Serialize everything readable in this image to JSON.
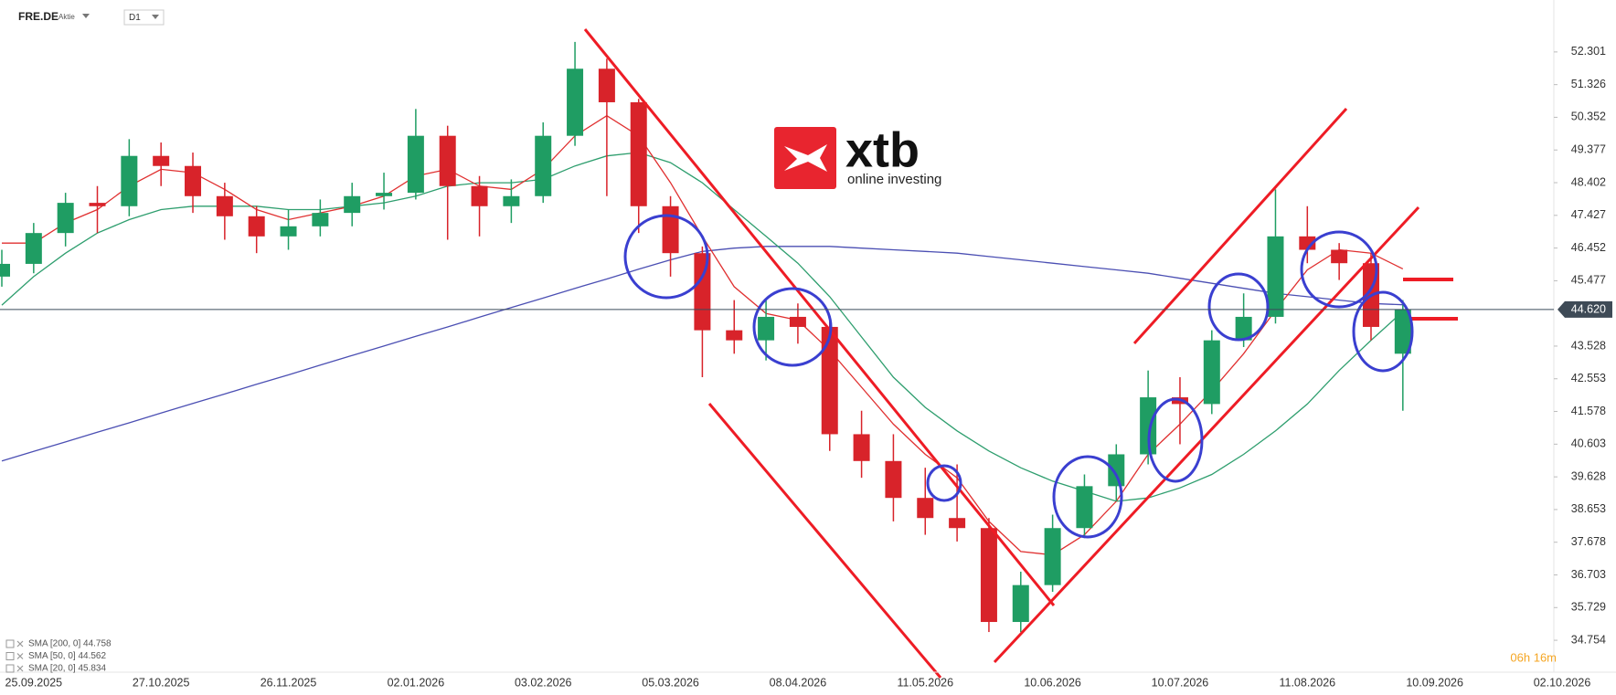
{
  "header": {
    "symbol": "FRE.DE",
    "instrument_type": "Aktie",
    "timeframe": "D1"
  },
  "logo": {
    "brand": "xtb",
    "tagline": "online investing"
  },
  "chart_data": {
    "type": "candlestick",
    "categories": [
      null,
      "25.09.2025",
      null,
      null,
      null,
      "27.10.2025",
      null,
      null,
      null,
      "26.11.2025",
      null,
      null,
      null,
      "02.01.2026",
      null,
      null,
      null,
      "03.02.2026",
      null,
      null,
      null,
      "05.03.2026",
      null,
      null,
      null,
      "08.04.2026",
      null,
      null,
      null,
      "11.05.2026",
      null,
      null,
      null,
      "10.06.2026",
      null,
      null,
      null,
      "10.07.2026",
      null,
      null,
      null,
      "11.08.2026",
      null,
      null,
      null,
      "10.09.2026",
      null,
      null,
      null,
      "02.10.2026"
    ],
    "open": [
      45.6,
      45.98,
      46.9,
      47.8,
      47.7,
      49.2,
      48.9,
      48.0,
      47.4,
      46.8,
      47.1,
      47.5,
      48.0,
      48.1,
      49.8,
      48.3,
      47.7,
      48.0,
      49.8,
      51.8,
      50.8,
      47.7,
      46.3,
      44.0,
      43.7,
      44.4,
      44.1,
      40.9,
      40.1,
      39.0,
      38.4,
      38.1,
      35.3,
      36.4,
      38.1,
      39.35,
      40.3,
      42.0,
      41.8,
      43.7,
      44.4,
      46.8,
      46.4,
      46.0,
      43.3,
      null,
      null,
      null,
      null,
      null
    ],
    "high": [
      46.4,
      47.2,
      48.1,
      48.3,
      49.7,
      49.6,
      49.3,
      48.4,
      47.7,
      47.6,
      47.9,
      48.4,
      48.7,
      50.6,
      50.1,
      48.6,
      48.5,
      50.2,
      52.6,
      52.1,
      50.9,
      48.0,
      46.5,
      44.9,
      44.9,
      44.8,
      44.4,
      41.6,
      40.9,
      39.9,
      40.0,
      38.4,
      36.8,
      38.5,
      39.7,
      40.6,
      42.8,
      42.6,
      44.0,
      45.1,
      48.2,
      47.7,
      46.6,
      46.3,
      44.9,
      null,
      null,
      null,
      null,
      null
    ],
    "low": [
      45.3,
      45.7,
      46.5,
      46.9,
      47.4,
      48.3,
      47.5,
      46.7,
      46.3,
      46.4,
      46.8,
      47.1,
      47.6,
      47.9,
      46.7,
      46.8,
      47.2,
      47.8,
      49.5,
      48.0,
      46.9,
      45.6,
      42.6,
      43.3,
      43.1,
      43.6,
      40.4,
      39.6,
      38.3,
      37.9,
      37.7,
      35.0,
      35.0,
      36.2,
      37.8,
      38.9,
      40.0,
      40.6,
      41.5,
      43.5,
      44.2,
      46.0,
      45.5,
      43.7,
      41.6,
      null,
      null,
      null,
      null,
      null
    ],
    "close": [
      45.98,
      46.9,
      47.8,
      47.7,
      49.2,
      48.9,
      48.0,
      47.4,
      46.8,
      47.1,
      47.5,
      48.0,
      48.1,
      49.8,
      48.3,
      47.7,
      48.0,
      49.8,
      51.8,
      50.8,
      47.7,
      46.3,
      44.0,
      43.7,
      44.4,
      44.1,
      40.9,
      40.1,
      39.0,
      38.4,
      38.1,
      35.3,
      36.4,
      38.1,
      39.35,
      40.3,
      42.0,
      41.8,
      43.7,
      44.4,
      46.8,
      46.4,
      46.0,
      44.1,
      44.62,
      null,
      null,
      null,
      null,
      null
    ],
    "up_color": "#1f9d63",
    "down_color": "#d8232a",
    "series": [
      {
        "name": "SMA [200, 0] 44.758",
        "color": "#4b4fb3",
        "values": [
          40.1,
          40.39,
          40.67,
          40.96,
          41.24,
          41.53,
          41.82,
          42.1,
          42.39,
          42.67,
          42.96,
          43.25,
          43.53,
          43.82,
          44.1,
          44.39,
          44.68,
          44.96,
          45.25,
          45.53,
          45.82,
          46.1,
          46.35,
          46.45,
          46.5,
          46.5,
          46.5,
          46.45,
          46.4,
          46.35,
          46.3,
          46.2,
          46.1,
          46.0,
          45.9,
          45.8,
          45.7,
          45.55,
          45.4,
          45.25,
          45.1,
          45.0,
          44.9,
          44.8,
          44.76,
          null,
          null,
          null,
          null,
          null
        ]
      },
      {
        "name": "SMA [50, 0] 44.562",
        "color": "#2e9e6e",
        "values": [
          44.75,
          45.6,
          46.3,
          46.9,
          47.3,
          47.6,
          47.7,
          47.7,
          47.7,
          47.6,
          47.6,
          47.7,
          47.8,
          48.0,
          48.3,
          48.4,
          48.4,
          48.5,
          48.9,
          49.2,
          49.3,
          49.0,
          48.4,
          47.6,
          46.8,
          46.0,
          45.0,
          43.8,
          42.6,
          41.7,
          41.0,
          40.4,
          39.9,
          39.5,
          39.2,
          38.9,
          39.0,
          39.3,
          39.7,
          40.3,
          41.0,
          41.8,
          42.8,
          43.7,
          44.56,
          null,
          null,
          null,
          null,
          null
        ]
      },
      {
        "name": "SMA [20, 0] 45.834",
        "color": "#e03030",
        "values": [
          46.6,
          46.6,
          47.2,
          47.6,
          48.3,
          48.8,
          48.7,
          48.2,
          47.6,
          47.3,
          47.5,
          47.7,
          48.0,
          48.6,
          48.8,
          48.3,
          48.2,
          48.8,
          49.8,
          50.4,
          49.8,
          48.4,
          46.8,
          45.3,
          44.5,
          44.3,
          43.4,
          42.3,
          41.2,
          40.3,
          39.6,
          38.3,
          37.4,
          37.3,
          37.9,
          38.9,
          40.3,
          41.2,
          42.2,
          43.3,
          44.6,
          45.8,
          46.4,
          46.3,
          45.83,
          null,
          null,
          null,
          null,
          null
        ]
      }
    ],
    "ylim": [
      33.83,
      53.85
    ],
    "yticks": [
      52.301,
      51.326,
      50.352,
      49.377,
      48.402,
      47.427,
      46.452,
      45.477,
      43.528,
      42.553,
      41.578,
      40.603,
      39.628,
      38.653,
      37.678,
      36.703,
      35.729,
      34.754
    ],
    "current_price": {
      "value": 44.62,
      "label": "44.620"
    },
    "countdown": "06h 16m"
  }
}
